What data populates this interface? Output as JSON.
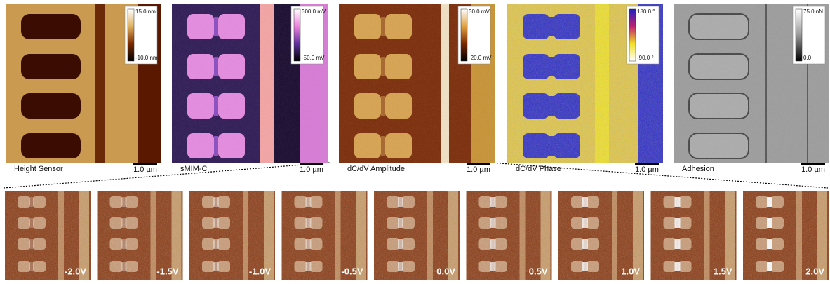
{
  "panels": [
    {
      "label": "Height Sensor",
      "scale_bar": "1.0 µm",
      "colorbar": {
        "max": "15.0 nm",
        "min": "-10.0 nm"
      }
    },
    {
      "label": "sMIM-C",
      "scale_bar": "1.0 µm",
      "colorbar": {
        "max": "300.0 mV",
        "min": "-50.0 mV"
      }
    },
    {
      "label": "dC/dV Amplitude",
      "scale_bar": "1.0 µm",
      "colorbar": {
        "max": "30.0 mV",
        "min": "-20.0 mV"
      }
    },
    {
      "label": "dC/dV Phase",
      "scale_bar": "1.0 µm",
      "colorbar": {
        "max": "180.0 °",
        "min": "-90.0 °"
      }
    },
    {
      "label": "Adhesion",
      "scale_bar": "1.0 µm",
      "colorbar": {
        "max": "75.0 nN",
        "min": "0.0"
      }
    }
  ],
  "bias_panels": [
    {
      "label": "-2.0V"
    },
    {
      "label": "-1.5V"
    },
    {
      "label": "-1.0V"
    },
    {
      "label": "-0.5V"
    },
    {
      "label": "0.0V"
    },
    {
      "label": "0.5V"
    },
    {
      "label": "1.0V"
    },
    {
      "label": "1.5V"
    },
    {
      "label": "2.0V"
    }
  ]
}
